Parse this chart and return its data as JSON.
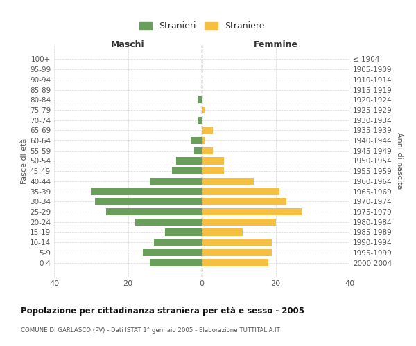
{
  "age_groups": [
    "100+",
    "95-99",
    "90-94",
    "85-89",
    "80-84",
    "75-79",
    "70-74",
    "65-69",
    "60-64",
    "55-59",
    "50-54",
    "45-49",
    "40-44",
    "35-39",
    "30-34",
    "25-29",
    "20-24",
    "15-19",
    "10-14",
    "5-9",
    "0-4"
  ],
  "birth_years": [
    "≤ 1904",
    "1905-1909",
    "1910-1914",
    "1915-1919",
    "1920-1924",
    "1925-1929",
    "1930-1934",
    "1935-1939",
    "1940-1944",
    "1945-1949",
    "1950-1954",
    "1955-1959",
    "1960-1964",
    "1965-1969",
    "1970-1974",
    "1975-1979",
    "1980-1984",
    "1985-1989",
    "1990-1994",
    "1995-1999",
    "2000-2004"
  ],
  "maschi": [
    0,
    0,
    0,
    0,
    1,
    0,
    1,
    0,
    3,
    2,
    7,
    8,
    14,
    30,
    29,
    26,
    18,
    10,
    13,
    16,
    14
  ],
  "femmine": [
    0,
    0,
    0,
    0,
    0,
    1,
    0,
    3,
    1,
    3,
    6,
    6,
    14,
    21,
    23,
    27,
    20,
    11,
    19,
    19,
    18
  ],
  "color_maschi": "#6a9f5b",
  "color_femmine": "#f5bf42",
  "title": "Popolazione per cittadinanza straniera per età e sesso - 2005",
  "subtitle": "COMUNE DI GARLASCO (PV) - Dati ISTAT 1° gennaio 2005 - Elaborazione TUTTITALIA.IT",
  "xlabel_left": "Maschi",
  "xlabel_right": "Femmine",
  "ylabel_left": "Fasce di età",
  "ylabel_right": "Anni di nascita",
  "legend_stranieri": "Stranieri",
  "legend_straniere": "Straniere",
  "xlim": 40,
  "background_color": "#ffffff",
  "grid_color": "#cccccc"
}
